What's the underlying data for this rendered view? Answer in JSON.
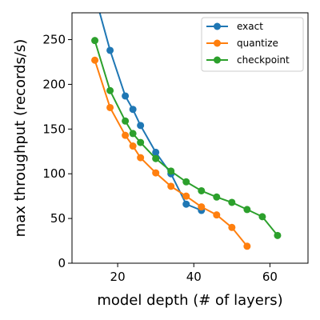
{
  "chart_data": {
    "type": "line",
    "title": "",
    "xlabel": "model depth (# of layers)",
    "ylabel": "max throughput (records/s)",
    "xlim": [
      8,
      70
    ],
    "ylim": [
      0,
      280
    ],
    "xticks": [
      20,
      40,
      60
    ],
    "yticks": [
      0,
      50,
      100,
      150,
      200,
      250
    ],
    "grid": false,
    "legend_position": "top-right",
    "series": [
      {
        "name": "exact",
        "color": "#1f77b4",
        "x": [
          14,
          18,
          22,
          24,
          26,
          30,
          34,
          38,
          42
        ],
        "y": [
          300,
          238,
          187,
          172,
          154,
          124,
          100,
          66,
          59
        ]
      },
      {
        "name": "quantize",
        "color": "#ff7f0e",
        "x": [
          14,
          18,
          22,
          24,
          26,
          30,
          34,
          38,
          42,
          46,
          50,
          54
        ],
        "y": [
          227,
          174,
          143,
          131,
          118,
          101,
          86,
          75,
          63,
          54,
          40,
          19
        ]
      },
      {
        "name": "checkpoint",
        "color": "#2ca02c",
        "x": [
          14,
          18,
          22,
          24,
          26,
          30,
          34,
          38,
          42,
          46,
          50,
          54,
          58,
          62
        ],
        "y": [
          249,
          193,
          159,
          145,
          135,
          117,
          103,
          91,
          81,
          74,
          68,
          60,
          52,
          31
        ]
      }
    ]
  }
}
